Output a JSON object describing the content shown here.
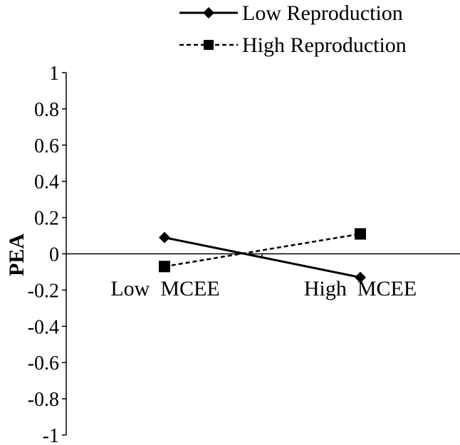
{
  "chart_data": {
    "type": "line",
    "ylabel": "PEA",
    "ylim": [
      -1,
      1
    ],
    "y_ticks": [
      "1",
      "0.8",
      "0.6",
      "0.4",
      "0.2",
      "0",
      "-0.2",
      "-0.4",
      "-0.6",
      "-0.8",
      "-1"
    ],
    "categories": [
      "Low  MCEE",
      "High  MCEE"
    ],
    "legend_position": "top-right",
    "series": [
      {
        "name": "Low Reproduction",
        "values": [
          0.09,
          -0.13
        ],
        "line_style": "solid",
        "marker": "diamond",
        "color": "#000000"
      },
      {
        "name": "High Reproduction",
        "values": [
          -0.07,
          0.11
        ],
        "line_style": "dashed",
        "marker": "square",
        "color": "#000000"
      }
    ]
  }
}
